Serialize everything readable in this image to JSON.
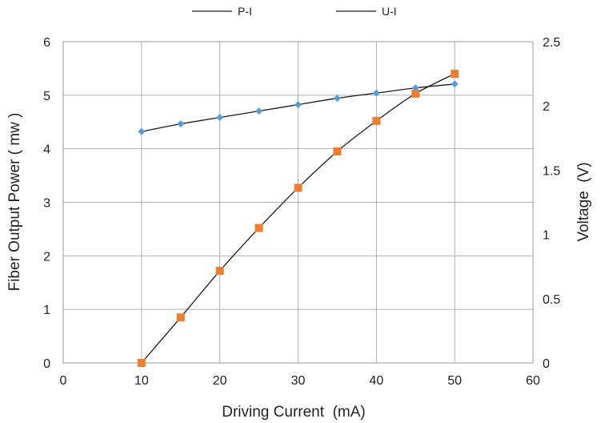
{
  "chart_data": {
    "type": "line",
    "xlabel": "Driving Current  (mA)",
    "ylabel_left": "Fiber Output Power ( mw )",
    "ylabel_right": "Voltage  (V)",
    "xlim": [
      0,
      60
    ],
    "ylim_left": [
      0,
      6
    ],
    "ylim_right": [
      0,
      2.5
    ],
    "x_ticks": [
      0,
      10,
      20,
      30,
      40,
      50,
      60
    ],
    "y_left_ticks": [
      0,
      1,
      2,
      3,
      4,
      5,
      6
    ],
    "y_right_ticks": [
      0,
      0.5,
      1,
      1.5,
      2,
      2.5
    ],
    "x_tick_labels": [
      "0",
      "10",
      "20",
      "30",
      "40",
      "50",
      "60"
    ],
    "y_left_tick_labels": [
      "0",
      "1",
      "2",
      "3",
      "4",
      "5",
      "6"
    ],
    "y_right_tick_labels": [
      "0",
      "0.5",
      "1",
      "1.5",
      "2",
      "2.5"
    ],
    "grid": true,
    "legend_position": "top",
    "legend": [
      "P-I",
      "U-I"
    ],
    "series": [
      {
        "name": "P-I",
        "axis": "left",
        "marker": "square",
        "color": "#ED7D31",
        "x": [
          10,
          15,
          20,
          25,
          30,
          35,
          40,
          45,
          50
        ],
        "y": [
          0,
          0.85,
          1.72,
          2.52,
          3.27,
          3.95,
          4.52,
          5.03,
          5.4
        ]
      },
      {
        "name": "U-I",
        "axis": "right",
        "marker": "diamond",
        "color": "#5B9BD5",
        "x": [
          10,
          15,
          20,
          25,
          30,
          35,
          40,
          45,
          50
        ],
        "y": [
          1.8,
          1.86,
          1.91,
          1.96,
          2.01,
          2.06,
          2.1,
          2.14,
          2.17
        ]
      }
    ]
  }
}
